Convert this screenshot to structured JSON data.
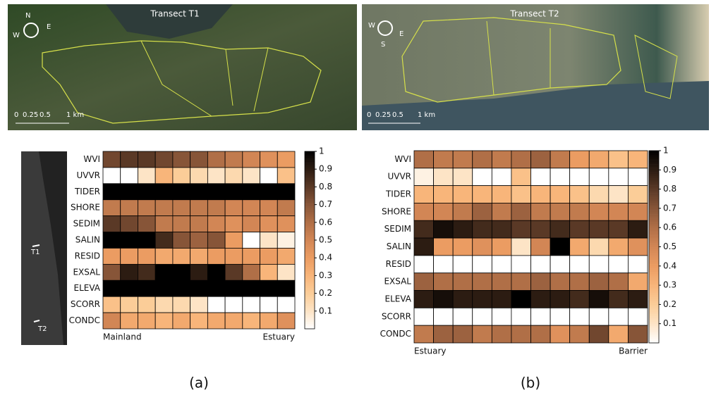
{
  "maps": [
    {
      "title": "Transect T1",
      "scale": [
        "0",
        "0.25",
        "0.5",
        "1 km"
      ],
      "compass": [
        "N",
        "E",
        "W"
      ]
    },
    {
      "title": "Transect T2",
      "scale": [
        "0",
        "0.25",
        "0.5",
        "1 km"
      ],
      "compass": [
        "W",
        "E",
        "S"
      ]
    }
  ],
  "inset": {
    "labels": [
      "T1",
      "T2"
    ]
  },
  "chart_data": [
    {
      "type": "heatmap",
      "panel_label": "(a)",
      "x_start_label": "Mainland",
      "x_end_label": "Estuary",
      "rows": [
        "WVI",
        "UVVR",
        "TIDER",
        "SHORE",
        "SEDIM",
        "SALIN",
        "RESID",
        "EXSAL",
        "ELEVA",
        "SCORR",
        "CONDC"
      ],
      "z": [
        [
          0.75,
          0.8,
          0.8,
          0.75,
          0.7,
          0.7,
          0.6,
          0.55,
          0.5,
          0.45,
          0.4
        ],
        [
          0,
          0,
          0.1,
          0.3,
          0.2,
          0.15,
          0.1,
          0.15,
          0.1,
          0,
          0.25
        ],
        [
          1,
          1,
          1,
          1,
          1,
          1,
          1,
          1,
          1,
          1,
          1
        ],
        [
          0.55,
          0.55,
          0.55,
          0.55,
          0.55,
          0.55,
          0.55,
          0.5,
          0.5,
          0.5,
          0.55
        ],
        [
          0.8,
          0.75,
          0.7,
          0.55,
          0.55,
          0.55,
          0.5,
          0.45,
          0.5,
          0.45,
          0.45
        ],
        [
          1,
          1,
          1,
          0.85,
          0.7,
          0.65,
          0.7,
          0.4,
          0,
          0.1,
          0.05
        ],
        [
          0.4,
          0.4,
          0.4,
          0.35,
          0.35,
          0.35,
          0.4,
          0.4,
          0.4,
          0.4,
          0.35
        ],
        [
          0.7,
          0.9,
          0.85,
          1,
          1,
          0.9,
          1,
          0.8,
          0.6,
          0.3,
          0.1
        ],
        [
          1,
          1,
          1,
          1,
          1,
          1,
          1,
          1,
          1,
          1,
          1
        ],
        [
          0.25,
          0.2,
          0.2,
          0.15,
          0.15,
          0.1,
          0,
          0,
          0,
          0,
          0
        ],
        [
          0.5,
          0.35,
          0.35,
          0.3,
          0.35,
          0.3,
          0.35,
          0.35,
          0.3,
          0.35,
          0.45
        ]
      ],
      "clim": [
        0,
        1
      ],
      "cticks": [
        0.1,
        0.2,
        0.3,
        0.4,
        0.5,
        0.6,
        0.7,
        0.8,
        0.9,
        1
      ],
      "colormap": [
        "#ffffff",
        "#fde4c6",
        "#fbcd98",
        "#f8b57a",
        "#eb9c62",
        "#d28655",
        "#b06f47",
        "#875538",
        "#5a3926",
        "#2c1c12",
        "#000000"
      ]
    },
    {
      "type": "heatmap",
      "panel_label": "(b)",
      "x_start_label": "Estuary",
      "x_end_label": "Barrier",
      "rows": [
        "WVI",
        "UVVR",
        "TIDER",
        "SHORE",
        "SEDIM",
        "SALIN",
        "RESID",
        "EXSAL",
        "ELEVA",
        "SCORR",
        "CONDC"
      ],
      "z": [
        [
          0.6,
          0.55,
          0.55,
          0.6,
          0.55,
          0.6,
          0.65,
          0.55,
          0.4,
          0.35,
          0.25,
          0.3
        ],
        [
          0.05,
          0.1,
          0.1,
          0,
          0,
          0.25,
          0,
          0,
          0,
          0,
          0,
          0
        ],
        [
          0.3,
          0.3,
          0.3,
          0.3,
          0.3,
          0.25,
          0.3,
          0.3,
          0.25,
          0.15,
          0.1,
          0.2
        ],
        [
          0.5,
          0.5,
          0.55,
          0.65,
          0.55,
          0.65,
          0.55,
          0.55,
          0.55,
          0.5,
          0.5,
          0.5
        ],
        [
          0.85,
          0.95,
          0.9,
          0.85,
          0.85,
          0.8,
          0.8,
          0.85,
          0.8,
          0.8,
          0.8,
          0.9
        ],
        [
          0.9,
          0.4,
          0.4,
          0.45,
          0.4,
          0.1,
          0.5,
          1,
          0.35,
          0.15,
          0.35,
          0.45
        ],
        [
          0,
          0,
          0,
          0,
          0,
          0,
          0,
          0,
          0,
          0,
          0,
          0
        ],
        [
          0.65,
          0.6,
          0.6,
          0.6,
          0.6,
          0.6,
          0.65,
          0.6,
          0.6,
          0.65,
          0.6,
          0.35
        ],
        [
          0.9,
          0.95,
          0.9,
          0.9,
          0.9,
          1,
          0.9,
          0.9,
          0.85,
          0.95,
          0.85,
          0.9
        ],
        [
          0,
          0,
          0,
          0,
          0,
          0,
          0,
          0,
          0,
          0,
          0,
          0
        ],
        [
          0.55,
          0.65,
          0.65,
          0.55,
          0.6,
          0.6,
          0.6,
          0.45,
          0.55,
          0.75,
          0.35,
          0.7
        ]
      ],
      "clim": [
        0,
        1
      ],
      "cticks": [
        0.1,
        0.2,
        0.3,
        0.4,
        0.5,
        0.6,
        0.7,
        0.8,
        0.9,
        1
      ],
      "colormap": [
        "#ffffff",
        "#fde4c6",
        "#fbcd98",
        "#f8b57a",
        "#eb9c62",
        "#d28655",
        "#b06f47",
        "#875538",
        "#5a3926",
        "#2c1c12",
        "#000000"
      ]
    }
  ]
}
